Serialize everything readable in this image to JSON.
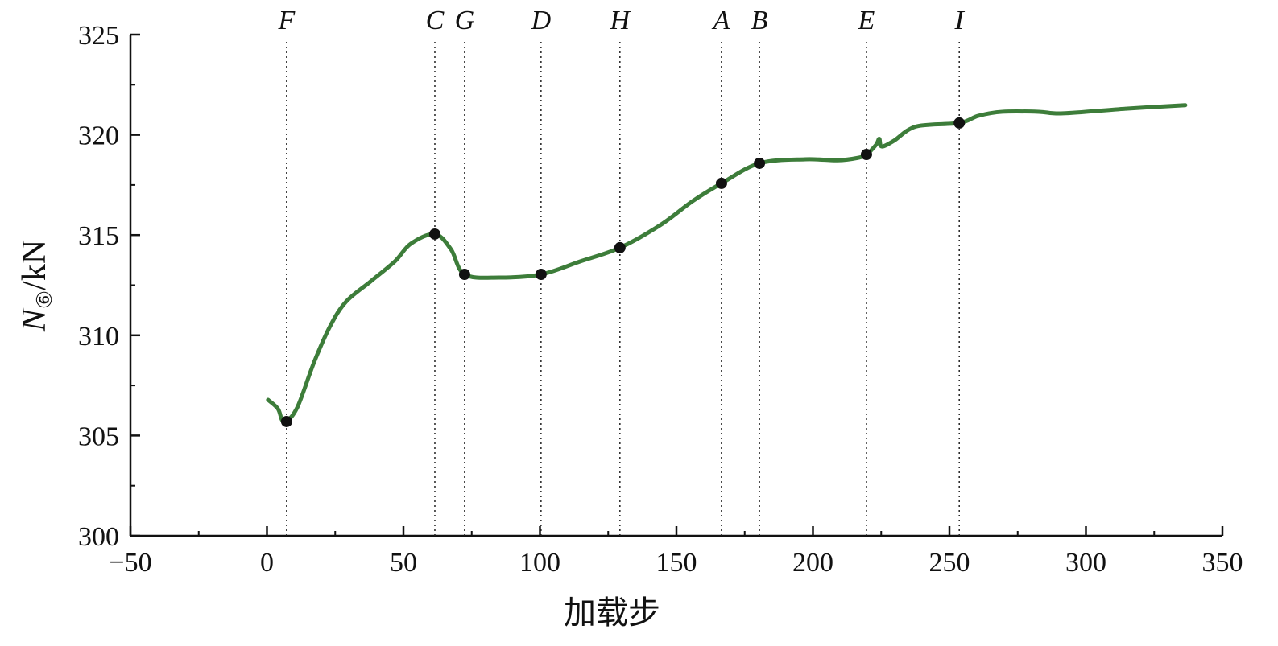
{
  "chart_data": {
    "type": "line",
    "title": "",
    "xlabel": "加载步",
    "ylabel": {
      "main": "N",
      "sub": "⑥",
      "unit": "/kN"
    },
    "xlim": [
      -50,
      350
    ],
    "ylim": [
      300,
      325
    ],
    "xticks": [
      -50,
      0,
      50,
      100,
      150,
      200,
      250,
      300,
      350
    ],
    "xtick_labels": [
      "−50",
      "0",
      "50",
      "100",
      "150",
      "200",
      "250",
      "300",
      "350"
    ],
    "yticks": [
      300,
      305,
      310,
      315,
      320,
      325
    ],
    "ytick_labels": [
      "300",
      "305",
      "310",
      "315",
      "320",
      "325"
    ],
    "grid": false,
    "line_color": "#3d7d3a",
    "marker_color": "#111111",
    "series": [
      {
        "x": [
          0.4,
          4,
          5.5,
          7.2,
          11.3,
          17.3,
          23.2,
          29,
          37.9,
          46.8,
          52.7,
          61.5,
          67.4,
          72.4,
          85,
          100.4,
          114.6,
          129.3,
          144,
          155.9,
          166.5,
          180.4,
          197.2,
          209,
          216.4,
          219.6,
          223.1,
          224.3,
          225.2,
          229.6,
          237.9,
          253.6,
          260.6,
          269.4,
          282.7,
          291.6,
          315.2,
          336.4
        ],
        "y": [
          306.78,
          306.34,
          305.78,
          305.7,
          306.46,
          308.67,
          310.47,
          311.68,
          312.68,
          313.68,
          314.57,
          315.05,
          314.29,
          313.04,
          312.88,
          313.04,
          313.68,
          314.37,
          315.49,
          316.69,
          317.58,
          318.58,
          318.78,
          318.73,
          318.85,
          319.02,
          319.5,
          319.8,
          319.42,
          319.7,
          320.42,
          320.59,
          320.95,
          321.15,
          321.15,
          321.07,
          321.31,
          321.48
        ]
      }
    ],
    "markers": [
      {
        "label": "F",
        "x": 7.2,
        "y": 305.7
      },
      {
        "label": "C",
        "x": 61.5,
        "y": 315.05
      },
      {
        "label": "G",
        "x": 72.4,
        "y": 313.04
      },
      {
        "label": "D",
        "x": 100.4,
        "y": 313.04
      },
      {
        "label": "H",
        "x": 129.3,
        "y": 314.37
      },
      {
        "label": "A",
        "x": 166.5,
        "y": 317.58
      },
      {
        "label": "B",
        "x": 180.4,
        "y": 318.58
      },
      {
        "label": "E",
        "x": 219.6,
        "y": 319.02
      },
      {
        "label": "I",
        "x": 253.6,
        "y": 320.59
      }
    ]
  }
}
